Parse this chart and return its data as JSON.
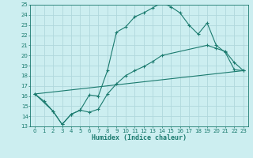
{
  "bg_color": "#cceef0",
  "grid_color": "#b0d8dc",
  "line_color": "#1a7a6e",
  "line1_x": [
    0,
    1,
    2,
    3,
    4,
    5,
    6,
    7,
    8,
    9,
    10,
    11,
    12,
    13,
    14,
    15,
    16,
    17,
    18,
    19,
    20,
    21,
    22,
    23
  ],
  "line1_y": [
    16.2,
    15.5,
    14.5,
    13.2,
    14.2,
    14.6,
    16.1,
    16.0,
    18.5,
    22.3,
    22.8,
    23.8,
    24.2,
    24.7,
    25.2,
    24.8,
    24.2,
    23.0,
    22.1,
    23.2,
    21.0,
    20.3,
    18.6,
    18.5
  ],
  "line2_x": [
    0,
    2,
    3,
    4,
    5,
    6,
    7,
    8,
    9,
    10,
    11,
    12,
    13,
    14,
    19,
    20,
    21,
    22,
    23
  ],
  "line2_y": [
    16.2,
    14.5,
    13.2,
    14.2,
    14.6,
    14.4,
    14.7,
    16.2,
    17.2,
    18.0,
    18.5,
    18.9,
    19.4,
    20.0,
    21.0,
    20.7,
    20.4,
    19.3,
    18.5
  ],
  "line3_x": [
    0,
    23
  ],
  "line3_y": [
    16.2,
    18.5
  ],
  "xlim": [
    -0.5,
    23.5
  ],
  "ylim": [
    13,
    25
  ],
  "yticks": [
    13,
    14,
    15,
    16,
    17,
    18,
    19,
    20,
    21,
    22,
    23,
    24,
    25
  ],
  "xticks": [
    0,
    1,
    2,
    3,
    4,
    5,
    6,
    7,
    8,
    9,
    10,
    11,
    12,
    13,
    14,
    15,
    16,
    17,
    18,
    19,
    20,
    21,
    22,
    23
  ],
  "xlabel": "Humidex (Indice chaleur)",
  "xlabel_fontsize": 6,
  "tick_fontsize": 5,
  "marker": "+"
}
